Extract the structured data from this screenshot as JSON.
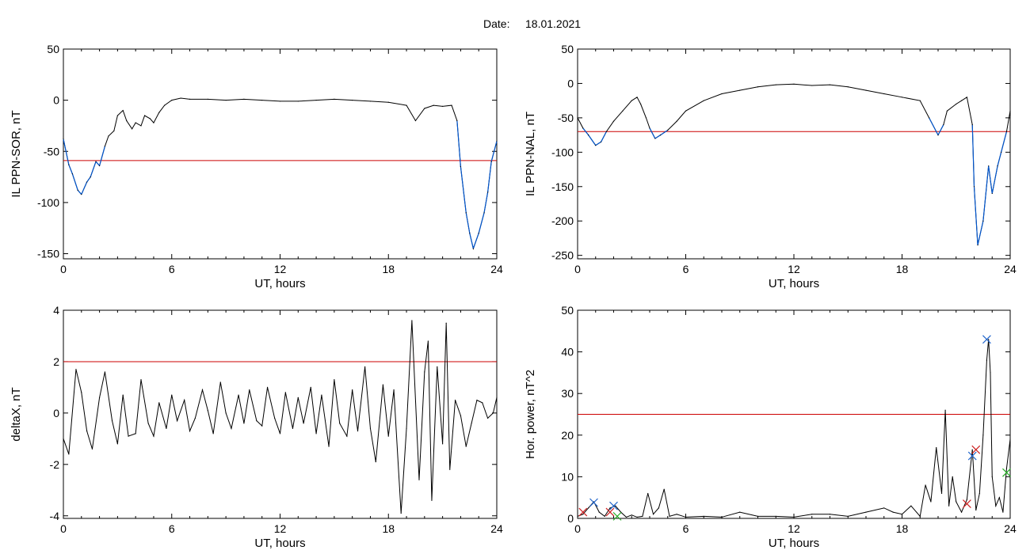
{
  "header": {
    "date_label": "Date:",
    "date_value": "18.01.2021"
  },
  "chart_data": [
    {
      "id": "sor",
      "type": "line",
      "ylabel": "IL PPN-SOR, nT",
      "xlabel": "UT, hours",
      "xlim": [
        0,
        24
      ],
      "ylim": [
        -155,
        50
      ],
      "xticks": [
        0,
        6,
        12,
        18,
        24
      ],
      "yticks": [
        50,
        0,
        -50,
        -100,
        -150
      ],
      "threshold": -59,
      "series": [
        {
          "x": [
            0,
            0.3,
            0.5,
            0.8,
            1.0,
            1.3,
            1.5,
            1.8,
            2.0,
            2.3,
            2.5,
            2.8,
            3.0,
            3.3,
            3.5,
            3.8,
            4.0,
            4.3,
            4.5,
            4.8,
            5.0,
            5.3,
            5.6,
            6.0,
            6.5,
            7,
            8,
            9,
            10,
            11,
            12,
            13,
            14,
            15,
            16,
            17,
            18,
            19,
            19.5,
            20,
            20.5,
            21,
            21.5,
            21.8,
            22.0,
            22.3,
            22.5,
            22.7,
            23.0,
            23.3,
            23.5,
            23.7,
            24.0
          ],
          "y": [
            -38,
            -63,
            -72,
            -88,
            -92,
            -80,
            -75,
            -60,
            -64,
            -45,
            -35,
            -30,
            -15,
            -10,
            -20,
            -28,
            -22,
            -25,
            -15,
            -18,
            -22,
            -12,
            -5,
            0,
            2,
            1,
            1,
            0,
            1,
            0,
            -1,
            -1,
            0,
            1,
            0,
            -1,
            -2,
            -5,
            -20,
            -8,
            -5,
            -6,
            -5,
            -20,
            -65,
            -110,
            -130,
            -145,
            -130,
            -110,
            -90,
            -60,
            -40
          ]
        }
      ]
    },
    {
      "id": "nal",
      "type": "line",
      "ylabel": "IL PPN-NAL, nT",
      "xlabel": "UT, hours",
      "xlim": [
        0,
        24
      ],
      "ylim": [
        -255,
        50
      ],
      "xticks": [
        0,
        6,
        12,
        18,
        24
      ],
      "yticks": [
        50,
        0,
        -50,
        -100,
        -150,
        -200,
        -250
      ],
      "threshold": -70,
      "series": [
        {
          "x": [
            0,
            0.3,
            0.6,
            1.0,
            1.3,
            1.6,
            2.0,
            2.5,
            3.0,
            3.3,
            3.5,
            3.8,
            4.0,
            4.3,
            4.6,
            5.0,
            5.5,
            6.0,
            7,
            8,
            9,
            10,
            11,
            12,
            13,
            14,
            15,
            16,
            17,
            18,
            19,
            19.5,
            20,
            20.3,
            20.5,
            21,
            21.3,
            21.6,
            21.9,
            22.0,
            22.2,
            22.5,
            22.8,
            23.0,
            23.3,
            23.5,
            23.8,
            24.0
          ],
          "y": [
            -50,
            -65,
            -75,
            -90,
            -85,
            -70,
            -55,
            -40,
            -25,
            -20,
            -30,
            -50,
            -65,
            -80,
            -75,
            -68,
            -55,
            -40,
            -25,
            -15,
            -10,
            -5,
            -2,
            -1,
            -3,
            -2,
            -5,
            -10,
            -15,
            -20,
            -25,
            -50,
            -75,
            -60,
            -40,
            -30,
            -25,
            -20,
            -60,
            -150,
            -235,
            -200,
            -120,
            -160,
            -120,
            -100,
            -70,
            -40
          ]
        }
      ]
    },
    {
      "id": "deltax",
      "type": "line",
      "ylabel": "deltaX, nT",
      "xlabel": "UT, hours",
      "xlim": [
        0,
        24
      ],
      "ylim": [
        -4.1,
        4
      ],
      "xticks": [
        0,
        6,
        12,
        18,
        24
      ],
      "yticks": [
        4,
        2,
        0,
        -2,
        -4
      ],
      "threshold": 2,
      "series": [
        {
          "x": [
            0,
            0.3,
            0.7,
            1.0,
            1.3,
            1.6,
            2.0,
            2.3,
            2.7,
            3.0,
            3.3,
            3.6,
            4.0,
            4.3,
            4.7,
            5.0,
            5.3,
            5.7,
            6.0,
            6.3,
            6.7,
            7.0,
            7.3,
            7.7,
            8.0,
            8.3,
            8.7,
            9.0,
            9.3,
            9.7,
            10.0,
            10.3,
            10.7,
            11.0,
            11.3,
            11.7,
            12.0,
            12.3,
            12.7,
            13.0,
            13.3,
            13.7,
            14.0,
            14.3,
            14.7,
            15.0,
            15.3,
            15.7,
            16.0,
            16.3,
            16.7,
            17.0,
            17.3,
            17.7,
            18.0,
            18.3,
            18.7,
            19.0,
            19.3,
            19.7,
            20.0,
            20.2,
            20.4,
            20.7,
            21.0,
            21.2,
            21.4,
            21.7,
            22.0,
            22.3,
            22.6,
            22.9,
            23.2,
            23.5,
            23.8,
            24.0
          ],
          "y": [
            -1.0,
            -1.6,
            1.7,
            0.8,
            -0.7,
            -1.4,
            0.6,
            1.6,
            -0.3,
            -1.2,
            0.7,
            -0.9,
            -0.8,
            1.3,
            -0.4,
            -0.9,
            0.4,
            -0.6,
            0.7,
            -0.3,
            0.5,
            -0.7,
            -0.2,
            0.9,
            0.1,
            -0.8,
            1.2,
            0.0,
            -0.6,
            0.7,
            -0.4,
            0.9,
            -0.3,
            -0.5,
            1.0,
            -0.2,
            -0.8,
            0.8,
            -0.6,
            0.6,
            -0.4,
            1.0,
            -0.8,
            0.7,
            -1.3,
            1.3,
            -0.4,
            -0.9,
            0.9,
            -0.7,
            1.8,
            -0.6,
            -1.9,
            1.1,
            -0.9,
            0.9,
            -3.9,
            -0.6,
            3.6,
            -2.6,
            1.6,
            2.8,
            -3.4,
            1.8,
            -1.2,
            3.5,
            -2.2,
            0.5,
            -0.1,
            -1.3,
            -0.4,
            0.5,
            0.4,
            -0.2,
            0.0,
            0.6
          ]
        }
      ]
    },
    {
      "id": "power",
      "type": "line",
      "ylabel": "Hor. power, nT^2",
      "xlabel": "UT, hours",
      "xlim": [
        0,
        24
      ],
      "ylim": [
        0,
        50
      ],
      "xticks": [
        0,
        6,
        12,
        18,
        24
      ],
      "yticks": [
        50,
        40,
        30,
        20,
        10,
        0
      ],
      "threshold": 25,
      "series": [
        {
          "x": [
            0,
            0.3,
            0.6,
            0.9,
            1.2,
            1.5,
            1.8,
            2.1,
            2.4,
            2.7,
            3.0,
            3.3,
            3.6,
            3.9,
            4.2,
            4.5,
            4.8,
            5.1,
            5.5,
            6.0,
            7,
            8,
            9,
            10,
            11,
            12,
            13,
            14,
            15,
            16,
            17,
            17.5,
            18,
            18.5,
            19,
            19.3,
            19.6,
            19.9,
            20.2,
            20.4,
            20.6,
            20.8,
            21.0,
            21.3,
            21.6,
            21.9,
            22.1,
            22.3,
            22.5,
            22.7,
            22.8,
            22.9,
            23.0,
            23.2,
            23.4,
            23.6,
            23.8,
            24.0
          ],
          "y": [
            0.5,
            1.0,
            2.5,
            4.0,
            1.5,
            0.5,
            2.5,
            3.0,
            1.5,
            0.3,
            0.8,
            0.3,
            0.5,
            6.0,
            1.0,
            2.5,
            7.0,
            0.5,
            1.0,
            0.3,
            0.5,
            0.3,
            1.5,
            0.5,
            0.5,
            0.3,
            1.0,
            1.0,
            0.5,
            1.5,
            2.5,
            1.5,
            1.0,
            3.0,
            0.5,
            8.0,
            4.0,
            17.0,
            6.0,
            26.0,
            3.0,
            10.0,
            4.0,
            1.5,
            4.5,
            16.5,
            2.0,
            6.0,
            20.0,
            38.0,
            43.0,
            35.0,
            10.0,
            3.0,
            5.0,
            1.5,
            12.0,
            19.0
          ]
        }
      ],
      "markers": [
        {
          "x": 0.9,
          "y": 3.8,
          "color": "#2266cc"
        },
        {
          "x": 2.0,
          "y": 3.0,
          "color": "#2266cc"
        },
        {
          "x": 21.9,
          "y": 15.0,
          "color": "#2266cc"
        },
        {
          "x": 22.7,
          "y": 43.0,
          "color": "#2266cc"
        },
        {
          "x": 0.3,
          "y": 1.5,
          "color": "#cc2222"
        },
        {
          "x": 1.8,
          "y": 1.5,
          "color": "#cc2222"
        },
        {
          "x": 21.6,
          "y": 3.5,
          "color": "#cc2222"
        },
        {
          "x": 22.1,
          "y": 16.5,
          "color": "#cc2222"
        },
        {
          "x": 2.2,
          "y": 0.5,
          "color": "#22aa22"
        },
        {
          "x": 23.8,
          "y": 11.0,
          "color": "#22aa22"
        }
      ]
    }
  ],
  "colors": {
    "line": "#000000",
    "below_threshold": "#0055cc",
    "threshold": "#cc0000"
  }
}
